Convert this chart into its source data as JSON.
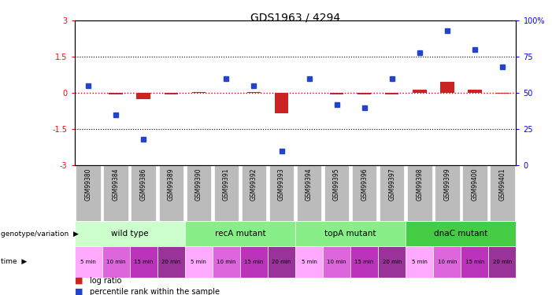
{
  "title": "GDS1963 / 4294",
  "samples": [
    "GSM99380",
    "GSM99384",
    "GSM99386",
    "GSM99389",
    "GSM99390",
    "GSM99391",
    "GSM99392",
    "GSM99393",
    "GSM99394",
    "GSM99395",
    "GSM99396",
    "GSM99397",
    "GSM99398",
    "GSM99399",
    "GSM99400",
    "GSM99401"
  ],
  "log_ratio_vals": [
    0.02,
    -0.05,
    -0.25,
    -0.05,
    0.05,
    0.0,
    0.05,
    -0.85,
    0.0,
    -0.05,
    -0.05,
    -0.05,
    0.15,
    0.45,
    0.12,
    -0.02
  ],
  "pct_rank_vals": [
    55,
    35,
    18,
    null,
    null,
    60,
    55,
    10,
    60,
    42,
    40,
    60,
    78,
    93,
    80,
    68
  ],
  "bar_color_red": "#cc2222",
  "bar_color_blue": "#2244cc",
  "dotted_line_color": "#cc0000",
  "sample_box_color": "#bbbbbb",
  "groups": [
    {
      "label": "wild type",
      "start": 0,
      "end": 3,
      "color": "#ccffcc"
    },
    {
      "label": "recA mutant",
      "start": 4,
      "end": 7,
      "color": "#88ee88"
    },
    {
      "label": "topA mutant",
      "start": 8,
      "end": 11,
      "color": "#88ee88"
    },
    {
      "label": "dnaC mutant",
      "start": 12,
      "end": 15,
      "color": "#44cc44"
    }
  ],
  "times": [
    "5 min",
    "10 min",
    "15 min",
    "20 min",
    "5 min",
    "10 min",
    "15 min",
    "20 min",
    "5 min",
    "10 min",
    "15 min",
    "20 min",
    "5 min",
    "10 min",
    "15 min",
    "20 min"
  ],
  "time_colors": [
    "#ffaaff",
    "#dd66dd",
    "#bb33bb",
    "#993399",
    "#ffaaff",
    "#dd66dd",
    "#bb33bb",
    "#993399",
    "#ffaaff",
    "#dd66dd",
    "#bb33bb",
    "#993399",
    "#ffaaff",
    "#dd66dd",
    "#bb33bb",
    "#993399"
  ]
}
